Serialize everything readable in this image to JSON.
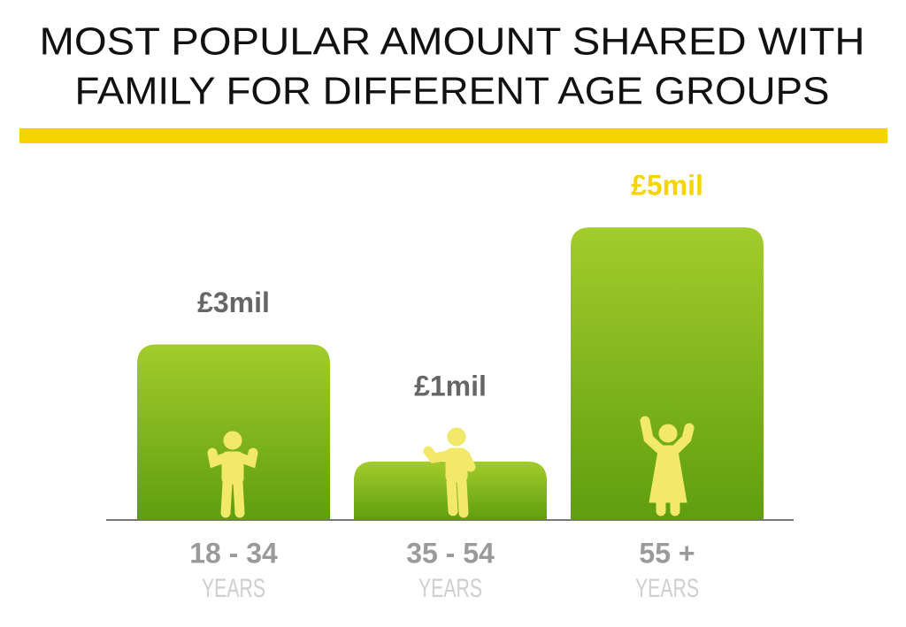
{
  "chart_data": {
    "type": "bar",
    "title": [
      "MOST POPULAR AMOUNT SHARED WITH",
      "FAMILY FOR DIFFERENT AGE GROUPS"
    ],
    "categories": [
      "18 - 34",
      "35 - 54",
      "55 +"
    ],
    "category_sublabels": [
      "YEARS",
      "YEARS",
      "YEARS"
    ],
    "values": [
      3,
      1,
      5
    ],
    "value_labels": [
      "£3mil",
      "£1mil",
      "£5mil"
    ],
    "value_label_colors": [
      "#666666",
      "#666666",
      "#f5d400"
    ],
    "color": "#7fb71e",
    "ylim": [
      0,
      6
    ]
  }
}
